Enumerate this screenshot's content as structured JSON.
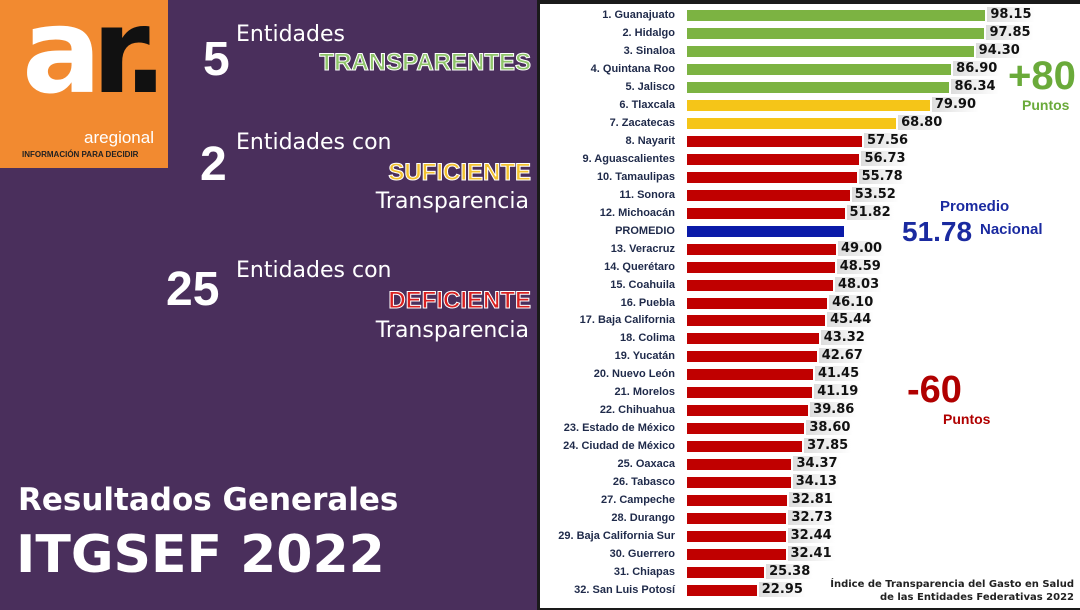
{
  "logo": {
    "brand": "aregional",
    "tagline": "INFORMACIÓN PARA DECIDIR",
    "mark": "ar."
  },
  "summary": [
    {
      "count": "5",
      "text": "Entidades",
      "category": "TRANSPARENTES",
      "suffix": "",
      "color": "#8fc46a"
    },
    {
      "count": "2",
      "text": "Entidades con",
      "category": "SUFICIENTE",
      "suffix": "Transparencia",
      "color": "#f2c230"
    },
    {
      "count": "25",
      "text": "Entidades con",
      "category": "DEFICIENTE",
      "suffix": "Transparencia",
      "color": "#d82020"
    }
  ],
  "footer": {
    "line1": "Resultados Generales",
    "line2": "ITGSEF 2022"
  },
  "chart_data": {
    "type": "bar",
    "orientation": "horizontal",
    "title": "Índice de Transparencia del Gasto en Salud de las Entidades Federativas 2022",
    "categories": [
      "1. Guanajuato",
      "2. Hidalgo",
      "3. Sinaloa",
      "4. Quintana Roo",
      "5. Jalisco",
      "6. Tlaxcala",
      "7. Zacatecas",
      "8. Nayarit",
      "9. Aguascalientes",
      "10. Tamaulipas",
      "11. Sonora",
      "12. Michoacán",
      "PROMEDIO",
      "13. Veracruz",
      "14. Querétaro",
      "15. Coahuila",
      "16. Puebla",
      "17. Baja California",
      "18. Colima",
      "19. Yucatán",
      "20. Nuevo León",
      "21. Morelos",
      "22. Chihuahua",
      "23. Estado de México",
      "24. Ciudad de México",
      "25. Oaxaca",
      "26. Tabasco",
      "27. Campeche",
      "28. Durango",
      "29. Baja California Sur",
      "30. Guerrero",
      "31. Chiapas",
      "32. San Luis Potosí"
    ],
    "values": [
      98.15,
      97.85,
      94.3,
      86.9,
      86.34,
      79.9,
      68.8,
      57.56,
      56.73,
      55.78,
      53.52,
      51.82,
      51.78,
      49.0,
      48.59,
      48.03,
      46.1,
      45.44,
      43.32,
      42.67,
      41.45,
      41.19,
      39.86,
      38.6,
      37.85,
      34.37,
      34.13,
      32.81,
      32.73,
      32.44,
      32.41,
      25.38,
      22.95
    ],
    "colors": {
      "transparente": "#7cb342",
      "suficiente": "#f5c518",
      "deficiente": "#c00000",
      "promedio": "#0a1aa8"
    },
    "xlim": [
      0,
      100
    ],
    "annotations": {
      "top": {
        "value": "+80",
        "label": "Puntos",
        "color": "#6aaa3a"
      },
      "average": {
        "label1": "Promedio",
        "value": "51.78",
        "label2": "Nacional",
        "color": "#1a2aa0"
      },
      "bottom": {
        "value": "-60",
        "label": "Puntos",
        "color": "#b00000"
      }
    }
  }
}
